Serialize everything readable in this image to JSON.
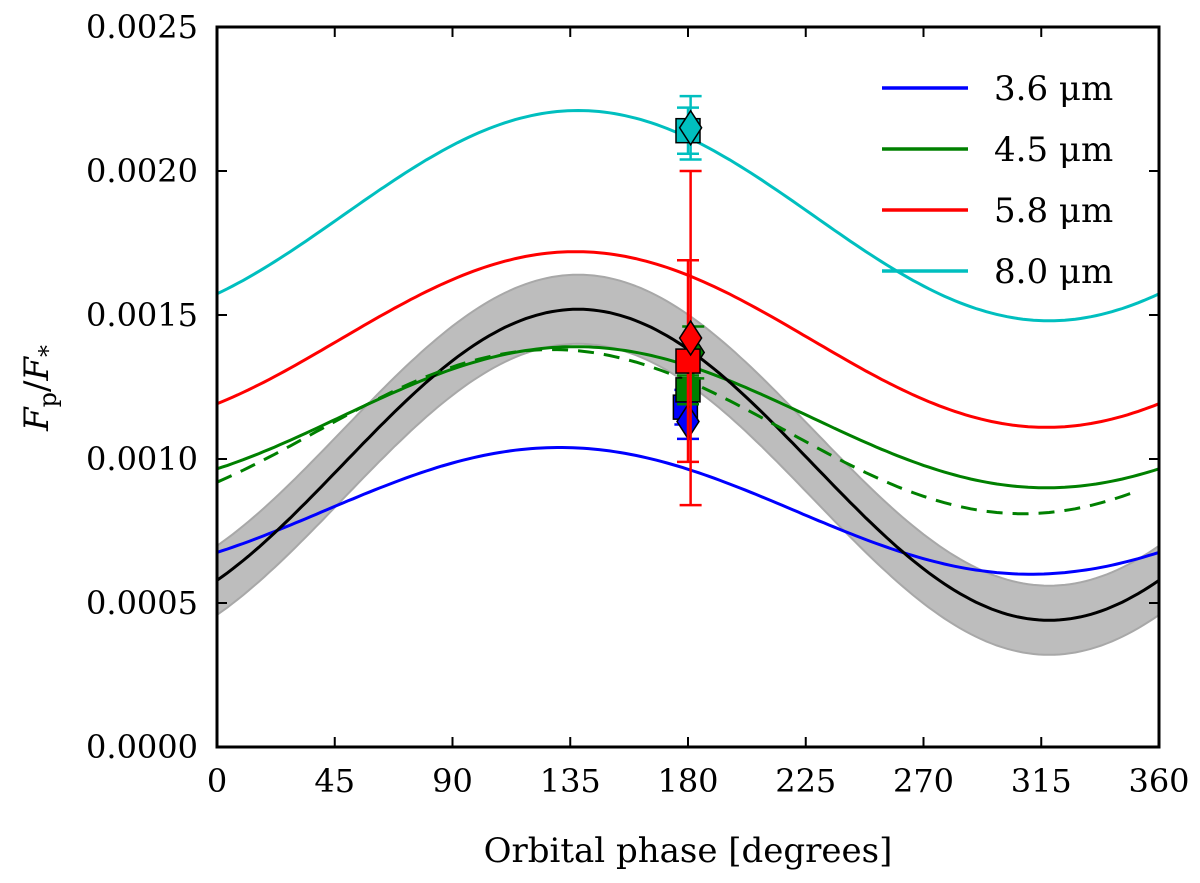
{
  "chart_data": {
    "type": "line",
    "title": "",
    "xlabel": "Orbital phase [degrees]",
    "ylabel": "F_p/F_*",
    "ylabel_parts": {
      "base1": "F",
      "sub1": "p",
      "slash": "/",
      "base2": "F",
      "sub2": "*"
    },
    "xlim": [
      0,
      360
    ],
    "ylim": [
      0.0,
      0.0025
    ],
    "xticks": [
      0,
      45,
      90,
      135,
      180,
      225,
      270,
      315,
      360
    ],
    "xtick_labels": [
      "0",
      "45",
      "90",
      "135",
      "180",
      "225",
      "270",
      "315",
      "360"
    ],
    "yticks": [
      0.0,
      0.0005,
      0.001,
      0.0015,
      0.002,
      0.0025
    ],
    "ytick_labels": [
      "0.0000",
      "0.0005",
      "0.0010",
      "0.0015",
      "0.0020",
      "0.0025"
    ],
    "grid": false,
    "legend_position": "top-right",
    "series": [
      {
        "name": "3.6 μm",
        "color": "#0000ff",
        "model": {
          "mean": 0.00082,
          "amplitude": 0.00022,
          "peak_phase": 131
        }
      },
      {
        "name": "4.5 μm",
        "color": "#008000",
        "model": {
          "mean": 0.001145,
          "amplitude": 0.000245,
          "peak_phase": 137
        }
      },
      {
        "name": "5.8 μm",
        "color": "#ff0000",
        "model": {
          "mean": 0.001415,
          "amplitude": 0.000305,
          "peak_phase": 137
        }
      },
      {
        "name": "8.0 μm",
        "color": "#00bfbf",
        "model": {
          "mean": 0.001845,
          "amplitude": 0.000365,
          "peak_phase": 138
        }
      }
    ],
    "extra_curves": [
      {
        "id": "black-model",
        "color": "#000000",
        "model": {
          "mean": 0.00098,
          "amplitude": 0.00054,
          "peak_phase": 138
        },
        "band_halfwidth": 0.00012,
        "band_color": "#bdbdbd"
      },
      {
        "id": "green-dashed-model",
        "color": "#008000",
        "dashed": true,
        "model": {
          "mean": 0.001095,
          "amplitude": 0.000285,
          "peak_phase": 128
        },
        "x_range": [
          0,
          352
        ]
      }
    ],
    "data_points": [
      {
        "x": 179,
        "y": 0.00118,
        "yerr": 6e-05,
        "color": "#0000ff",
        "marker": "square"
      },
      {
        "x": 180,
        "y": 0.00113,
        "yerr": 6e-05,
        "color": "#0000ff",
        "marker": "diamond"
      },
      {
        "x": 180,
        "y": 0.00124,
        "yerr": 5e-05,
        "color": "#008000",
        "marker": "square"
      },
      {
        "x": 182,
        "y": 0.00137,
        "yerr": 9e-05,
        "color": "#008000",
        "marker": "diamond"
      },
      {
        "x": 180,
        "y": 0.00134,
        "yerr": 0.00035,
        "color": "#ff0000",
        "marker": "square"
      },
      {
        "x": 181,
        "y": 0.00142,
        "yerr": 0.00058,
        "color": "#ff0000",
        "marker": "diamond"
      },
      {
        "x": 180,
        "y": 0.00214,
        "yerr": 8e-05,
        "color": "#00bfbf",
        "marker": "square"
      },
      {
        "x": 181,
        "y": 0.00215,
        "yerr": 0.00011,
        "color": "#00bfbf",
        "marker": "diamond"
      }
    ]
  }
}
